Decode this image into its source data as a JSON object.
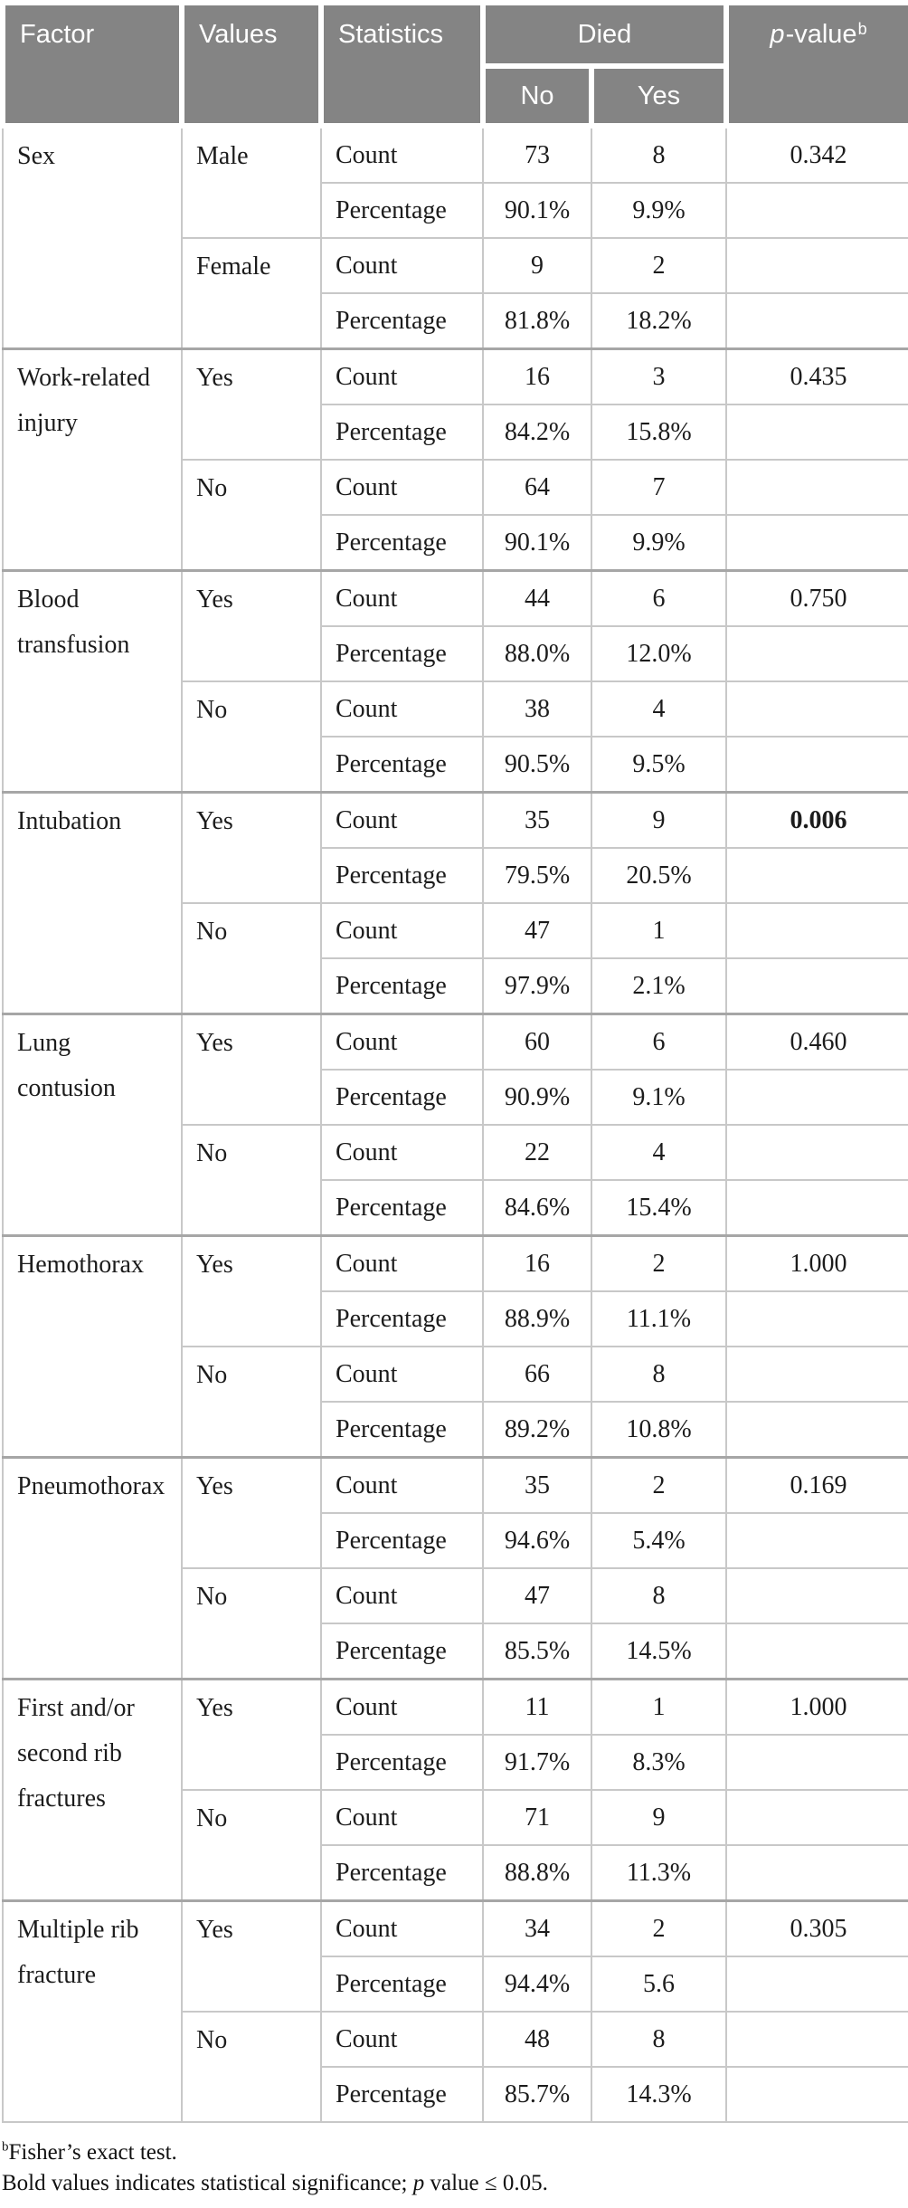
{
  "meta": {
    "colors": {
      "header_bg": "#848484",
      "header_text": "#ffffff",
      "body_text": "#1c1c1c",
      "grid_line": "#c8c8c8",
      "group_line": "#a6a6a6"
    }
  },
  "header": {
    "factor": "Factor",
    "values": "Values",
    "statistics": "Statistics",
    "died": "Died",
    "died_no": "No",
    "died_yes": "Yes",
    "pvalue": {
      "p": "p",
      "rest": "-value",
      "sup": "b"
    }
  },
  "stat_labels": {
    "count": "Count",
    "percentage": "Percentage"
  },
  "factors": [
    {
      "name": "Sex",
      "p_value": "0.342",
      "bold": false,
      "levels": [
        {
          "label": "Male",
          "count_no": "73",
          "count_yes": "8",
          "pct_no": "90.1%",
          "pct_yes": "9.9%"
        },
        {
          "label": "Female",
          "count_no": "9",
          "count_yes": "2",
          "pct_no": "81.8%",
          "pct_yes": "18.2%"
        }
      ]
    },
    {
      "name": "Work-related injury",
      "p_value": "0.435",
      "bold": false,
      "levels": [
        {
          "label": "Yes",
          "count_no": "16",
          "count_yes": "3",
          "pct_no": "84.2%",
          "pct_yes": "15.8%"
        },
        {
          "label": "No",
          "count_no": "64",
          "count_yes": "7",
          "pct_no": "90.1%",
          "pct_yes": "9.9%"
        }
      ]
    },
    {
      "name": "Blood transfusion",
      "p_value": "0.750",
      "bold": false,
      "levels": [
        {
          "label": "Yes",
          "count_no": "44",
          "count_yes": "6",
          "pct_no": "88.0%",
          "pct_yes": "12.0%"
        },
        {
          "label": "No",
          "count_no": "38",
          "count_yes": "4",
          "pct_no": "90.5%",
          "pct_yes": "9.5%"
        }
      ]
    },
    {
      "name": "Intubation",
      "p_value": "0.006",
      "bold": true,
      "levels": [
        {
          "label": "Yes",
          "count_no": "35",
          "count_yes": "9",
          "pct_no": "79.5%",
          "pct_yes": "20.5%"
        },
        {
          "label": "No",
          "count_no": "47",
          "count_yes": "1",
          "pct_no": "97.9%",
          "pct_yes": "2.1%"
        }
      ]
    },
    {
      "name": "Lung contusion",
      "p_value": "0.460",
      "bold": false,
      "levels": [
        {
          "label": "Yes",
          "count_no": "60",
          "count_yes": "6",
          "pct_no": "90.9%",
          "pct_yes": "9.1%"
        },
        {
          "label": "No",
          "count_no": "22",
          "count_yes": "4",
          "pct_no": "84.6%",
          "pct_yes": "15.4%"
        }
      ]
    },
    {
      "name": "Hemothorax",
      "p_value": "1.000",
      "bold": false,
      "levels": [
        {
          "label": "Yes",
          "count_no": "16",
          "count_yes": "2",
          "pct_no": "88.9%",
          "pct_yes": "11.1%"
        },
        {
          "label": "No",
          "count_no": "66",
          "count_yes": "8",
          "pct_no": "89.2%",
          "pct_yes": "10.8%"
        }
      ]
    },
    {
      "name": "Pneumothorax",
      "p_value": "0.169",
      "bold": false,
      "levels": [
        {
          "label": "Yes",
          "count_no": "35",
          "count_yes": "2",
          "pct_no": "94.6%",
          "pct_yes": "5.4%"
        },
        {
          "label": "No",
          "count_no": "47",
          "count_yes": "8",
          "pct_no": "85.5%",
          "pct_yes": "14.5%"
        }
      ]
    },
    {
      "name": "First and/or second rib fractures",
      "p_value": "1.000",
      "bold": false,
      "levels": [
        {
          "label": "Yes",
          "count_no": "11",
          "count_yes": "1",
          "pct_no": "91.7%",
          "pct_yes": "8.3%"
        },
        {
          "label": "No",
          "count_no": "71",
          "count_yes": "9",
          "pct_no": "88.8%",
          "pct_yes": "11.3%"
        }
      ]
    },
    {
      "name": "Multiple rib fracture",
      "p_value": "0.305",
      "bold": false,
      "levels": [
        {
          "label": "Yes",
          "count_no": "34",
          "count_yes": "2",
          "pct_no": "94.4%",
          "pct_yes": "5.6"
        },
        {
          "label": "No",
          "count_no": "48",
          "count_yes": "8",
          "pct_no": "85.7%",
          "pct_yes": "14.3%"
        }
      ]
    }
  ],
  "footnotes": {
    "line1": {
      "sup": "b",
      "text": "Fisher’s exact test."
    },
    "line2": {
      "before_p": "Bold values indicates statistical significance; ",
      "p": "p",
      "after_p": " value ≤ 0.05."
    }
  }
}
